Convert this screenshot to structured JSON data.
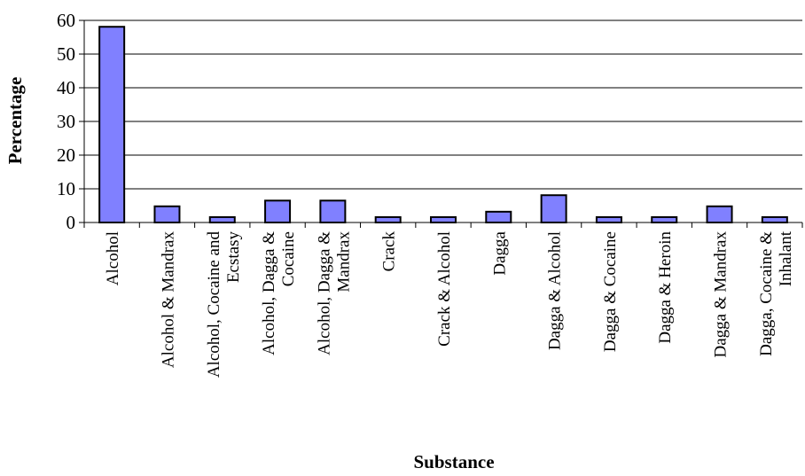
{
  "chart_data": {
    "type": "bar",
    "title": "",
    "xlabel": "Substance",
    "ylabel": "Percentage",
    "ylim": [
      0,
      60
    ],
    "yticks": [
      0,
      10,
      20,
      30,
      40,
      50,
      60
    ],
    "grid": true,
    "legend": "none",
    "bar_color": "#8080ff",
    "categories": [
      [
        "Alcohol"
      ],
      [
        "Alcohol & Mandrax"
      ],
      [
        "Alcohol, Cocaine and",
        "Ecstasy"
      ],
      [
        "Alcohol, Dagga &",
        "Cocaine"
      ],
      [
        "Alcohol, Dagga &",
        "Mandrax"
      ],
      [
        "Crack"
      ],
      [
        "Crack & Alcohol"
      ],
      [
        "Dagga"
      ],
      [
        "Dagga & Alcohol"
      ],
      [
        "Dagga & Cocaine"
      ],
      [
        "Dagga & Heroin"
      ],
      [
        "Dagga & Mandrax"
      ],
      [
        "Dagga, Cocaine &",
        "Inhalant"
      ]
    ],
    "values": [
      58.1,
      4.8,
      1.6,
      6.5,
      6.5,
      1.6,
      1.6,
      3.2,
      8.1,
      1.6,
      1.6,
      4.8,
      1.6
    ]
  }
}
